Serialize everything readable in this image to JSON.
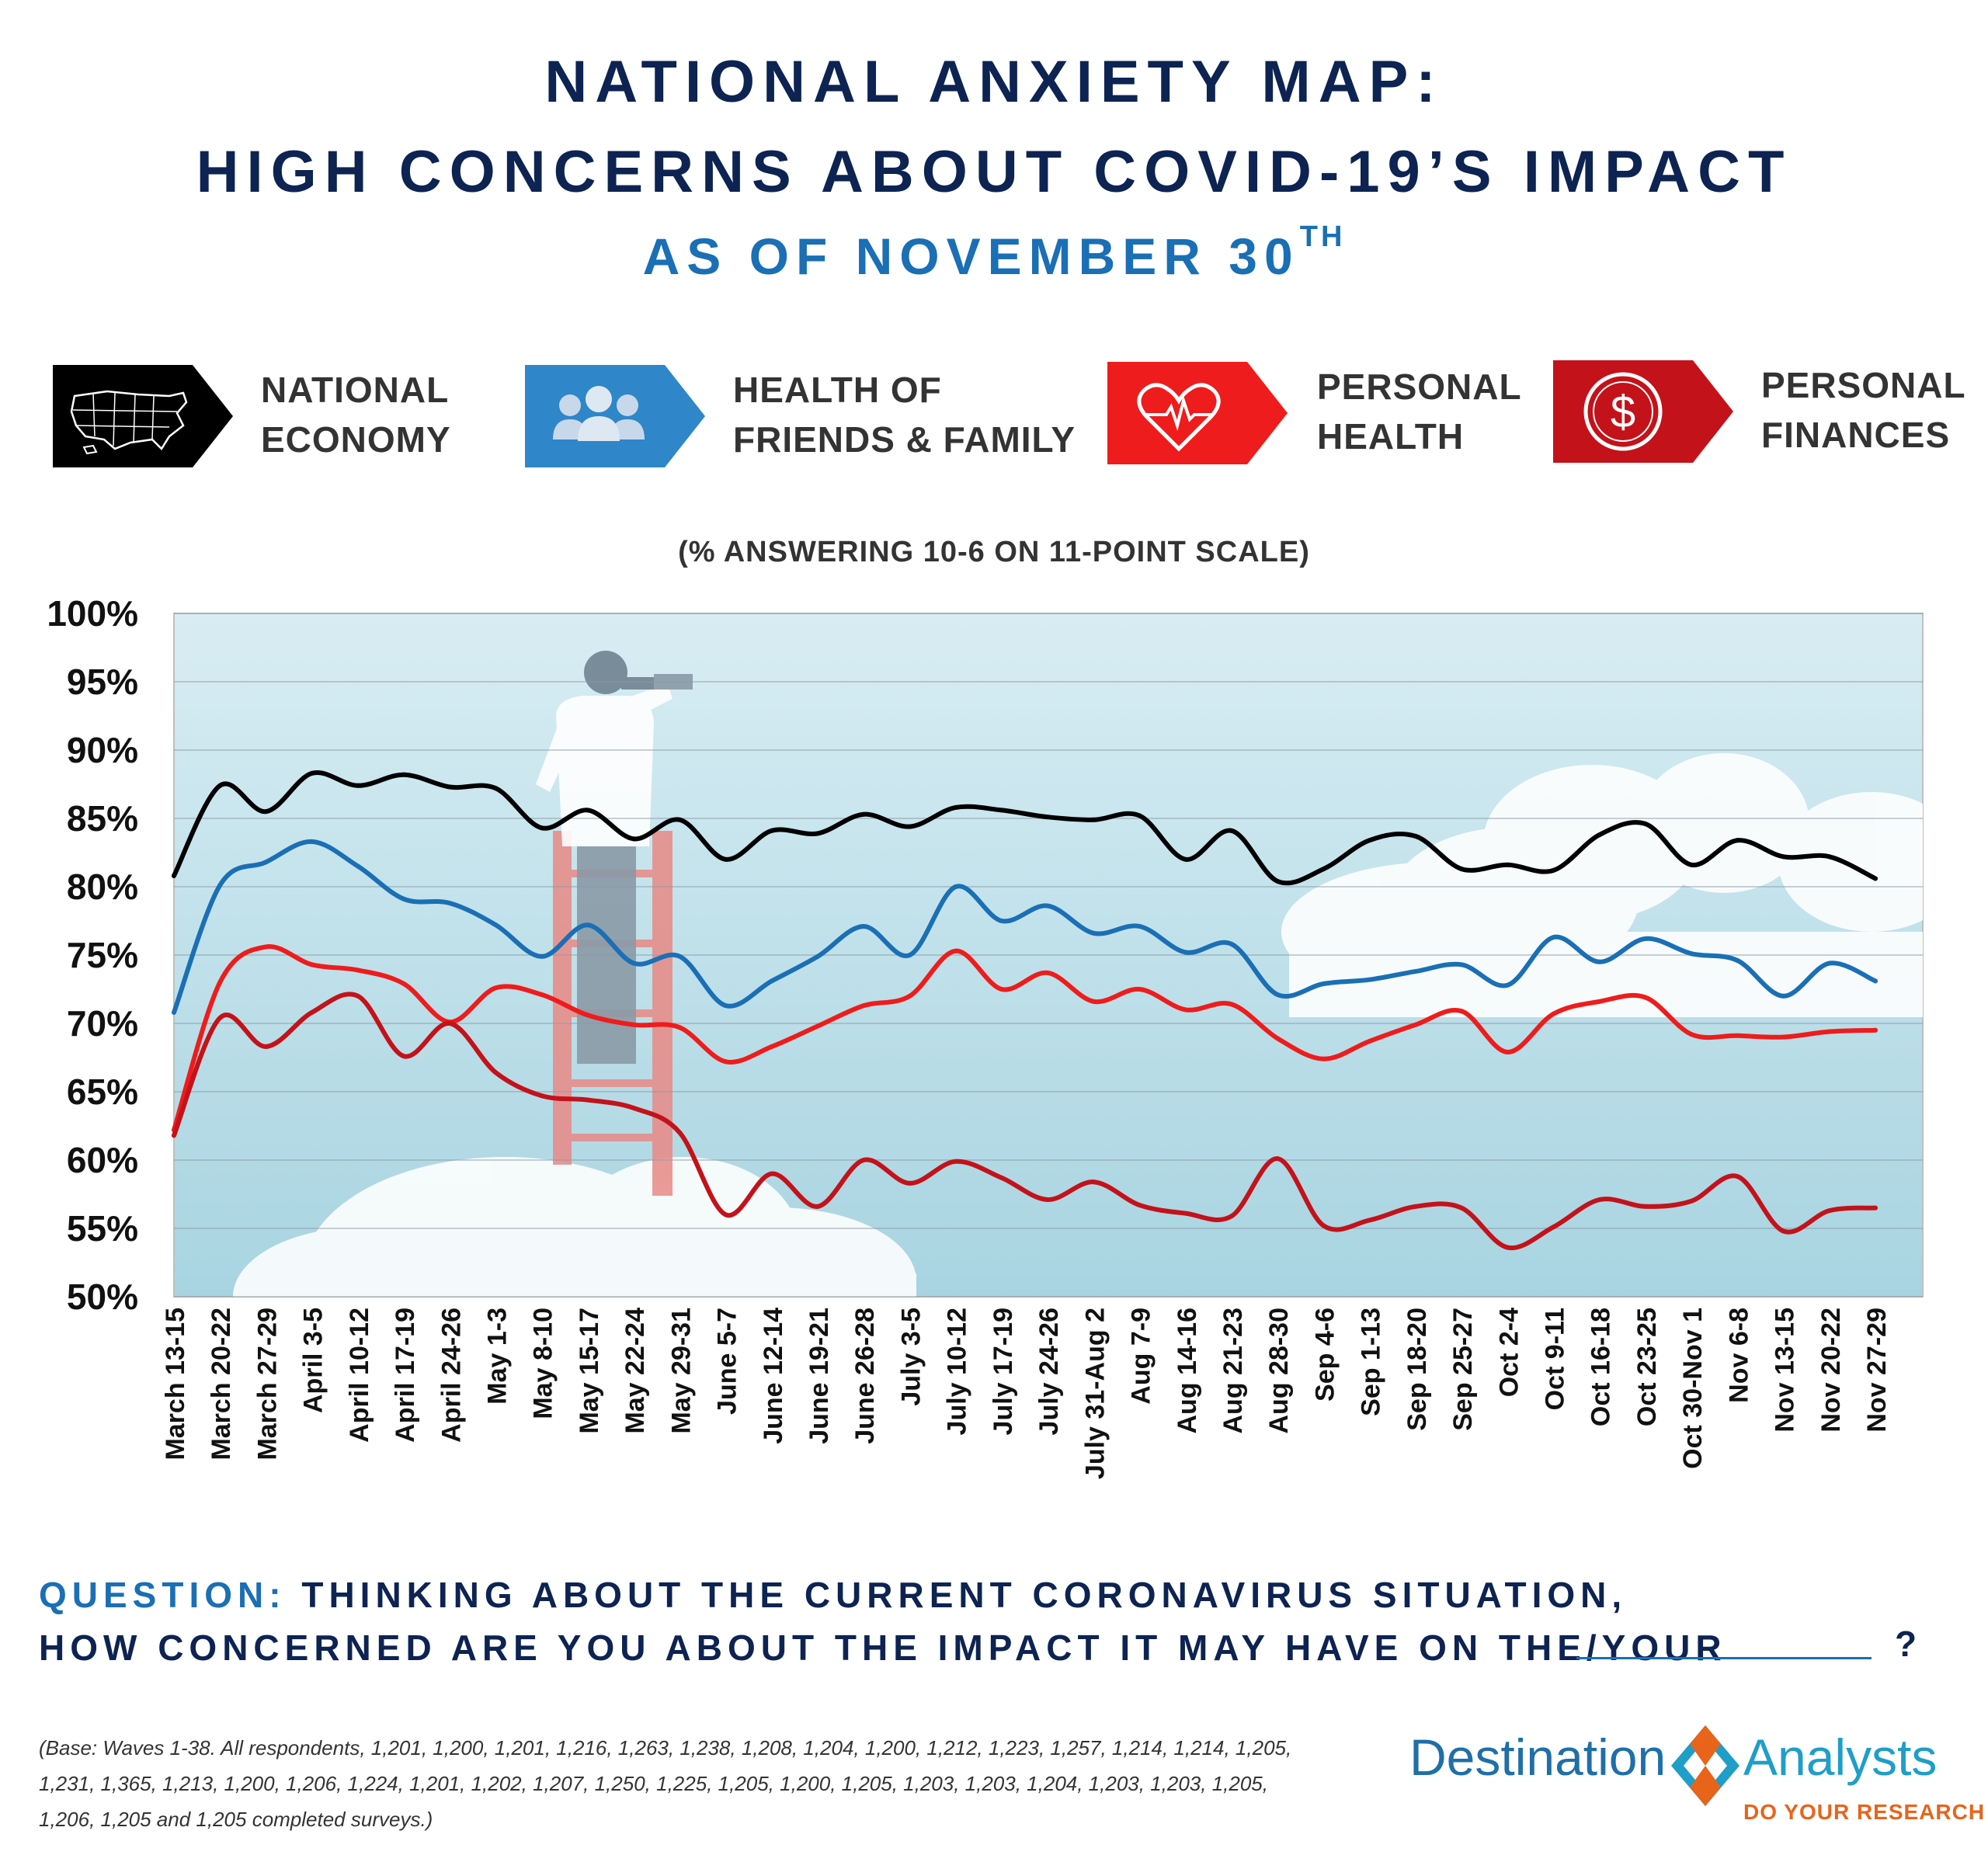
{
  "title": {
    "line1": "NATIONAL ANXIETY MAP:",
    "line2": "HIGH CONCERNS ABOUT COVID-19’S IMPACT",
    "line3": "AS OF NOVEMBER 30",
    "line3_sup": "TH"
  },
  "legend": [
    {
      "line1": "NATIONAL",
      "line2": "ECONOMY",
      "color": "#000000",
      "icon": "usa-map-icon"
    },
    {
      "line1": "HEALTH OF",
      "line2": "FRIENDS & FAMILY",
      "color": "#2f86c8",
      "icon": "people-group-icon"
    },
    {
      "line1": "PERSONAL",
      "line2": "HEALTH",
      "color": "#ee1c1c",
      "icon": "heart-pulse-icon"
    },
    {
      "line1": "PERSONAL",
      "line2": "FINANCES",
      "color": "#c4121a",
      "icon": "dollar-circle-icon"
    }
  ],
  "chart_data": {
    "type": "line",
    "subtitle": "(% ANSWERING 10-6 ON 11-POINT SCALE)",
    "ylim": [
      50,
      100
    ],
    "yticks": [
      "100%",
      "95%",
      "90%",
      "85%",
      "80%",
      "75%",
      "70%",
      "65%",
      "60%",
      "55%",
      "50%"
    ],
    "categories": [
      "March 13-15",
      "March 20-22",
      "March 27-29",
      "April 3-5",
      "April 10-12",
      "April 17-19",
      "April 24-26",
      "May 1-3",
      "May 8-10",
      "May 15-17",
      "May 22-24",
      "May 29-31",
      "June 5-7",
      "June 12-14",
      "June 19-21",
      "June 26-28",
      "July 3-5",
      "July 10-12",
      "July 17-19",
      "July 24-26",
      "July 31-Aug 2",
      "Aug 7-9",
      "Aug 14-16",
      "Aug 21-23",
      "Aug 28-30",
      "Sep 4-6",
      "Sep 1-13",
      "Sep 18-20",
      "Sep 25-27",
      "Oct 2-4",
      "Oct 9-11",
      "Oct 16-18",
      "Oct 23-25",
      "Oct 30-Nov 1",
      "Nov 6-8",
      "Nov 13-15",
      "Nov 20-22",
      "Nov 27-29"
    ],
    "series": [
      {
        "name": "National Economy",
        "color": "#000000",
        "values": [
          80.8,
          87.4,
          85.5,
          88.3,
          87.4,
          88.2,
          87.3,
          87.2,
          84.3,
          85.6,
          83.5,
          84.9,
          82.0,
          84.1,
          83.9,
          85.3,
          84.4,
          85.8,
          85.6,
          85.1,
          84.9,
          85.2,
          82.0,
          84.1,
          80.4,
          81.3,
          83.4,
          83.7,
          81.3,
          81.6,
          81.2,
          83.8,
          84.6,
          81.6,
          83.4,
          82.2,
          82.2,
          80.6
        ]
      },
      {
        "name": "Health of Friends & Family",
        "color": "#1a6fb5",
        "values": [
          70.8,
          80.1,
          81.8,
          83.3,
          81.5,
          79.1,
          78.8,
          77.2,
          74.9,
          77.2,
          74.4,
          74.9,
          71.3,
          73.1,
          74.9,
          77.1,
          75.0,
          80.0,
          77.5,
          78.6,
          76.6,
          77.1,
          75.2,
          75.8,
          72.1,
          72.9,
          73.2,
          73.8,
          74.3,
          72.8,
          76.3,
          74.5,
          76.2,
          75.1,
          74.6,
          72.0,
          74.4,
          73.1
        ]
      },
      {
        "name": "Personal Health",
        "color": "#ee1c1c",
        "values": [
          62.2,
          73.0,
          75.6,
          74.3,
          73.9,
          72.9,
          70.1,
          72.6,
          72.1,
          70.6,
          69.9,
          69.7,
          67.2,
          68.3,
          69.8,
          71.3,
          72.0,
          75.3,
          72.5,
          73.7,
          71.6,
          72.5,
          71.0,
          71.4,
          68.9,
          67.4,
          68.7,
          69.9,
          70.9,
          67.9,
          70.7,
          71.6,
          71.9,
          69.2,
          69.1,
          69.0,
          69.4,
          69.5
        ]
      },
      {
        "name": "Personal Finances",
        "color": "#c4121a",
        "values": [
          61.8,
          70.4,
          68.3,
          70.8,
          72.0,
          67.6,
          70.0,
          66.4,
          64.7,
          64.4,
          63.8,
          62.0,
          56.0,
          59.0,
          56.6,
          60.0,
          58.3,
          59.9,
          58.7,
          57.1,
          58.4,
          56.7,
          56.1,
          55.9,
          60.1,
          55.2,
          55.6,
          56.6,
          56.5,
          53.6,
          55.1,
          57.1,
          56.6,
          57.0,
          58.8,
          54.8,
          56.3,
          56.5
        ]
      }
    ]
  },
  "question": {
    "prefix": "QUESTION:",
    "line1": "THINKING ABOUT THE CURRENT CORONAVIRUS SITUATION,",
    "line2": "HOW CONCERNED ARE YOU ABOUT THE IMPACT IT MAY HAVE ON THE/YOUR",
    "end": "?"
  },
  "base_note": "(Base: Waves 1-38. All respondents, 1,201, 1,200, 1,201, 1,216, 1,263, 1,238, 1,208, 1,204, 1,200, 1,212, 1,223, 1,257, 1,214, 1,214, 1,205, 1,231, 1,365, 1,213, 1,200, 1,206, 1,224, 1,201, 1,202, 1,207, 1,250, 1,225, 1,205, 1,200, 1,205, 1,203, 1,203, 1,204, 1,203, 1,203, 1,205, 1,206, 1,205 and 1,205 completed surveys.)",
  "brand": {
    "left": "Destination",
    "right": "Analysts",
    "tagline": "DO YOUR RESEARCH",
    "colors": {
      "dark": "#1f6fa8",
      "light": "#1f9ec8",
      "orange": "#e8641b"
    }
  }
}
